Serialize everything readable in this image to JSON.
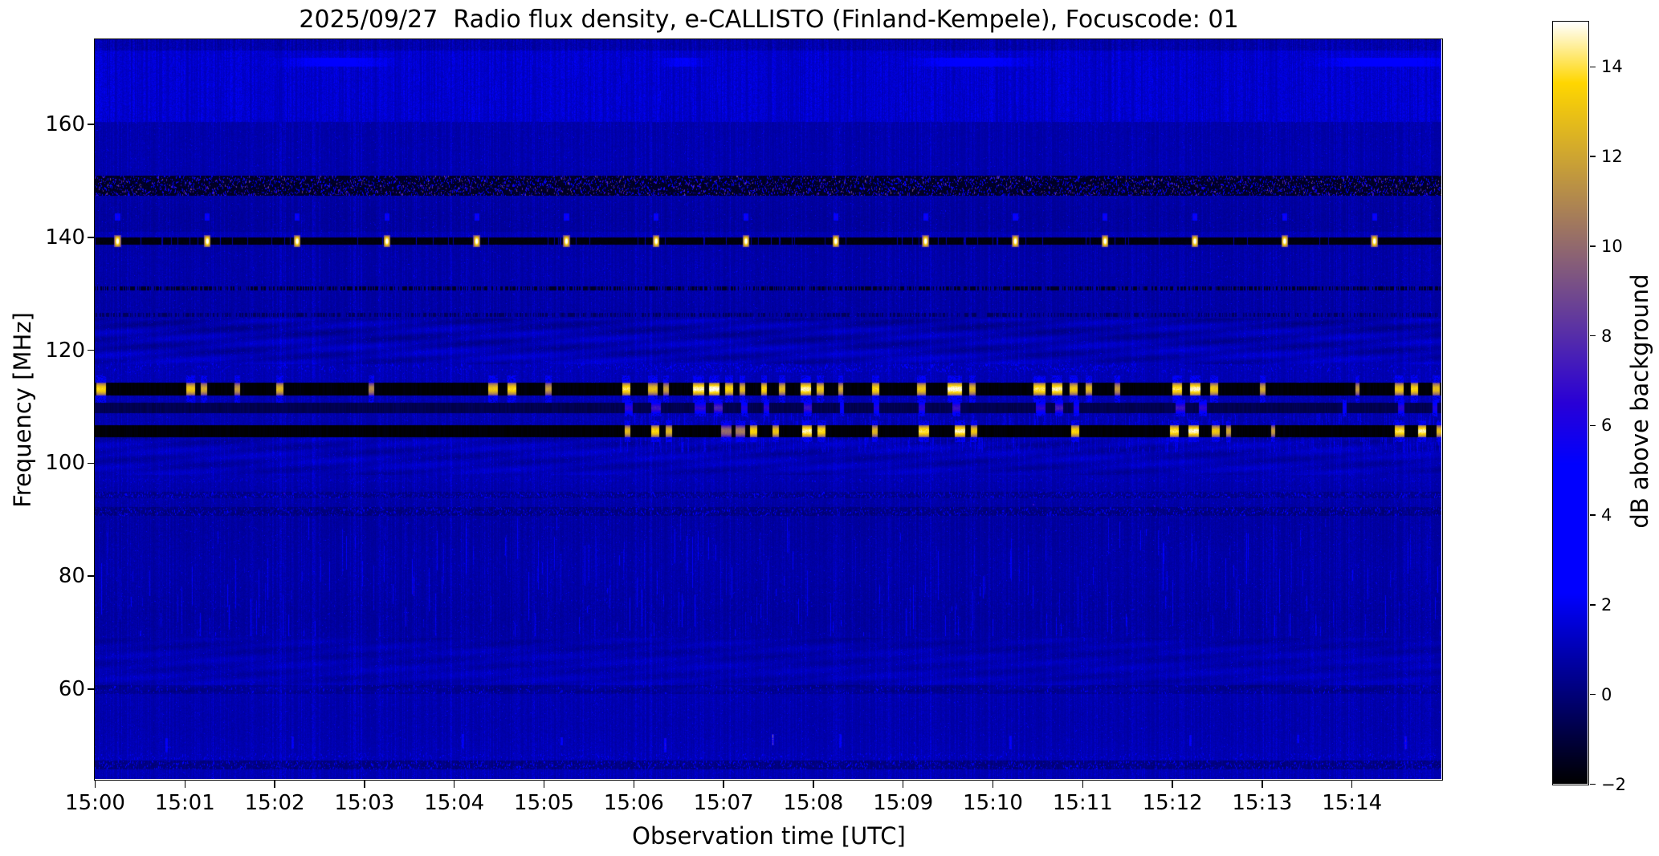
{
  "title": "2025/09/27  Radio flux density, e-CALLISTO (Finland-Kempele), Focuscode: 01",
  "xlabel": "Observation time [UTC]",
  "ylabel": "Frequency [MHz]",
  "colorbar": {
    "label": "dB above background",
    "min": -2,
    "max": 15,
    "tick_values": [
      14,
      12,
      10,
      8,
      6,
      4,
      2,
      0,
      -2
    ],
    "tick_labels": [
      "14",
      "12",
      "10",
      "8",
      "6",
      "4",
      "2",
      "0",
      "−2"
    ],
    "colormap": "gnuplot2"
  },
  "axes": {
    "x_tick_labels": [
      "15:00",
      "15:01",
      "15:02",
      "15:03",
      "15:04",
      "15:05",
      "15:06",
      "15:07",
      "15:08",
      "15:09",
      "15:10",
      "15:11",
      "15:12",
      "15:13",
      "15:14"
    ],
    "x_tick_minutes": [
      0,
      1,
      2,
      3,
      4,
      5,
      6,
      7,
      8,
      9,
      10,
      11,
      12,
      13,
      14
    ],
    "y_tick_values": [
      160,
      140,
      120,
      100,
      80,
      60
    ]
  },
  "colors": {
    "background": "#ffffff",
    "text": "#000000"
  },
  "chart_data": {
    "type": "heatmap",
    "title": "2025/09/27  Radio flux density, e-CALLISTO (Finland-Kempele), Focuscode: 01",
    "date": "2025/09/27",
    "station": "Finland-Kempele",
    "focuscode": "01",
    "xlabel": "Observation time [UTC]",
    "ylabel": "Frequency [MHz]",
    "x_range_time": [
      "15:00",
      "15:15"
    ],
    "x_range_minutes": [
      0,
      15
    ],
    "y_range_mhz": [
      44,
      175
    ],
    "value_scale": {
      "label": "dB above background",
      "min": -2,
      "max": 15,
      "colormap": "gnuplot2"
    },
    "background_db": 1.0,
    "features": [
      {
        "type": "stripes",
        "f": [
          160.5,
          175.0
        ],
        "base": 0.75,
        "amp": 1.05
      },
      {
        "type": "shade",
        "f": [
          173.2,
          175.0
        ],
        "add": -0.55
      },
      {
        "type": "streaks",
        "f": [
          160.5,
          173.0
        ],
        "density": 0.1,
        "v": [
          1.6,
          2.6
        ],
        "t": [
          0,
          15
        ],
        "len": [
          5,
          40
        ]
      },
      {
        "type": "smudge",
        "f": [
          170.3,
          171.8
        ],
        "events": [
          [
            2.15,
            1.1,
            1.8
          ],
          [
            6.3,
            0.5,
            1.2
          ],
          [
            9.2,
            1.15,
            2.0
          ],
          [
            13.75,
            1.3,
            2.2
          ]
        ]
      },
      {
        "type": "set",
        "f": [
          147.5,
          150.8
        ],
        "value": -1.6,
        "jitter": 0.5
      },
      {
        "type": "speckle",
        "f": [
          147.5,
          150.8
        ],
        "density": 0.95,
        "v": [
          1.2,
          9.0
        ],
        "dashes": 3
      },
      {
        "type": "line_dark",
        "f": [
          138.75,
          139.85
        ],
        "value": -1.9,
        "gap": 0.05
      },
      {
        "type": "shade",
        "f": [
          140.1,
          140.9
        ],
        "add": 0.3
      },
      {
        "type": "minute_blobs",
        "fc": 143.6,
        "fh": 0.7,
        "offset": 0.25,
        "width": 0.055,
        "v_core": 6.2,
        "v_edge": 2.5
      },
      {
        "type": "minute_blobs",
        "fc": 139.3,
        "fh": 1.05,
        "offset": 0.25,
        "width": 0.075,
        "v_core": 15.6,
        "v_edge": 8.5
      },
      {
        "type": "line_dark",
        "f": [
          130.6,
          131.25
        ],
        "value": -1.5,
        "gap": 0.45
      },
      {
        "type": "line_dark",
        "f": [
          125.95,
          126.5
        ],
        "value": -0.55,
        "gap": 0.55
      },
      {
        "type": "wavy",
        "f": [
          117.6,
          125.6
        ],
        "amp": 0.5
      },
      {
        "type": "wavy",
        "f": [
          98.0,
          104.6
        ],
        "amp": 0.4
      },
      {
        "type": "wavy",
        "f": [
          59.5,
          69.0
        ],
        "amp": 0.28
      },
      {
        "type": "speckle",
        "f": [
          116.2,
          117.6
        ],
        "density": 0.3,
        "v": [
          1.8,
          4.0
        ],
        "dashes": 1
      },
      {
        "type": "speckle",
        "f": [
          116.2,
          117.6
        ],
        "density": 0.55,
        "v": [
          2.2,
          5.0
        ],
        "dashes": 1,
        "t": [
          5.8,
          11.6
        ]
      },
      {
        "type": "streaks",
        "f": [
          102.0,
          110.8
        ],
        "density": 0.5,
        "v": [
          1.4,
          2.6
        ],
        "t": [
          5.85,
          15
        ],
        "len": [
          6,
          40
        ]
      },
      {
        "type": "bursts",
        "f": [
          112.0,
          114.2
        ],
        "base": -2,
        "bleed": 1.3,
        "events": [
          [
            0.02,
            0.1,
            14
          ],
          [
            1.02,
            0.09,
            13.5
          ],
          [
            1.18,
            0.06,
            12.5
          ],
          [
            1.56,
            0.05,
            12
          ],
          [
            2.02,
            0.07,
            13
          ],
          [
            3.05,
            0.05,
            11.5
          ],
          [
            4.38,
            0.1,
            13.5
          ],
          [
            4.6,
            0.09,
            14
          ],
          [
            5.02,
            0.06,
            12
          ],
          [
            5.88,
            0.08,
            14.5
          ],
          [
            6.16,
            0.1,
            13.2
          ],
          [
            6.33,
            0.06,
            12.2
          ],
          [
            6.66,
            0.12,
            15
          ],
          [
            6.84,
            0.11,
            15.4
          ],
          [
            7.02,
            0.08,
            14
          ],
          [
            7.18,
            0.06,
            13
          ],
          [
            7.42,
            0.06,
            14
          ],
          [
            7.62,
            0.06,
            13
          ],
          [
            7.86,
            0.11,
            15
          ],
          [
            8.04,
            0.07,
            13.5
          ],
          [
            8.28,
            0.05,
            12.5
          ],
          [
            8.66,
            0.07,
            14
          ],
          [
            9.16,
            0.09,
            13.5
          ],
          [
            9.5,
            0.15,
            15.3
          ],
          [
            9.74,
            0.06,
            13
          ],
          [
            10.46,
            0.12,
            14.5
          ],
          [
            10.66,
            0.11,
            15
          ],
          [
            10.86,
            0.08,
            13.5
          ],
          [
            11.04,
            0.06,
            13
          ],
          [
            11.36,
            0.05,
            12
          ],
          [
            12.0,
            0.1,
            14.5
          ],
          [
            12.2,
            0.11,
            15.2
          ],
          [
            12.42,
            0.08,
            13.5
          ],
          [
            12.98,
            0.05,
            12.5
          ],
          [
            14.04,
            0.04,
            12
          ],
          [
            14.48,
            0.09,
            13.5
          ],
          [
            14.66,
            0.07,
            14
          ],
          [
            14.9,
            0.07,
            13.2
          ]
        ]
      },
      {
        "type": "bursts",
        "f": [
          109.0,
          110.6
        ],
        "base": -0.85,
        "bleed": 0.5,
        "events": [
          [
            5.9,
            0.08,
            7
          ],
          [
            6.2,
            0.1,
            7.5
          ],
          [
            6.68,
            0.12,
            7
          ],
          [
            6.9,
            0.09,
            8
          ],
          [
            7.2,
            0.06,
            6.5
          ],
          [
            7.45,
            0.05,
            7
          ],
          [
            7.9,
            0.08,
            7.5
          ],
          [
            8.3,
            0.04,
            6
          ],
          [
            8.68,
            0.05,
            6.5
          ],
          [
            9.18,
            0.06,
            7
          ],
          [
            9.55,
            0.08,
            7.5
          ],
          [
            10.48,
            0.1,
            7
          ],
          [
            10.7,
            0.08,
            7.8
          ],
          [
            10.9,
            0.06,
            6.5
          ],
          [
            12.04,
            0.1,
            7.5
          ],
          [
            12.3,
            0.08,
            7
          ],
          [
            13.9,
            0.04,
            6
          ],
          [
            14.52,
            0.06,
            7
          ],
          [
            14.9,
            0.05,
            6.5
          ]
        ]
      },
      {
        "type": "bursts",
        "f": [
          104.6,
          106.6
        ],
        "base": -2,
        "bleed": 0.9,
        "events": [
          [
            5.9,
            0.06,
            13
          ],
          [
            6.2,
            0.08,
            14
          ],
          [
            6.36,
            0.06,
            13
          ],
          [
            6.98,
            0.1,
            10.5
          ],
          [
            7.14,
            0.1,
            11
          ],
          [
            7.3,
            0.07,
            14
          ],
          [
            7.55,
            0.06,
            13.5
          ],
          [
            7.88,
            0.1,
            15
          ],
          [
            8.05,
            0.08,
            14.2
          ],
          [
            8.66,
            0.05,
            13
          ],
          [
            9.18,
            0.1,
            14.5
          ],
          [
            9.58,
            0.11,
            15
          ],
          [
            9.76,
            0.06,
            13.5
          ],
          [
            10.88,
            0.08,
            14
          ],
          [
            11.98,
            0.09,
            14.5
          ],
          [
            12.18,
            0.11,
            15.2
          ],
          [
            12.44,
            0.08,
            13.5
          ],
          [
            12.6,
            0.05,
            12.5
          ],
          [
            13.1,
            0.04,
            12
          ],
          [
            14.48,
            0.1,
            14.5
          ],
          [
            14.74,
            0.08,
            15
          ],
          [
            14.95,
            0.05,
            13.2
          ]
        ]
      },
      {
        "type": "speckle",
        "f": [
          96.7,
          97.25
        ],
        "density": 0.5,
        "v": [
          0.8,
          2.0
        ],
        "dashes": 1
      },
      {
        "type": "shade",
        "f": [
          93.8,
          94.9
        ],
        "add": -0.55
      },
      {
        "type": "speckle",
        "f": [
          93.8,
          94.9
        ],
        "density": 0.6,
        "v": [
          0.7,
          2.8
        ],
        "dashes": 2
      },
      {
        "type": "shade",
        "f": [
          90.7,
          92.2
        ],
        "add": -0.6
      },
      {
        "type": "speckle",
        "f": [
          90.7,
          92.2
        ],
        "density": 0.6,
        "v": [
          0.7,
          3.0
        ],
        "dashes": 2
      },
      {
        "type": "sparse_dots",
        "f": [
          90.7,
          95.0
        ],
        "events": [
          [
            0.35,
            5.5
          ],
          [
            2.1,
            6.5
          ],
          [
            5.45,
            5.0
          ],
          [
            6.6,
            5.5
          ],
          [
            8.05,
            6.0
          ],
          [
            10.45,
            7.0
          ],
          [
            11.8,
            6.0
          ],
          [
            13.9,
            6.5
          ]
        ]
      },
      {
        "type": "streaks",
        "f": [
          69.5,
          90.5
        ],
        "density": 0.13,
        "v": [
          1.7,
          3.4
        ],
        "t": [
          0,
          15
        ],
        "len": [
          6,
          60
        ]
      },
      {
        "type": "streaks",
        "f": [
          69.5,
          90.5
        ],
        "density": 0.012,
        "v": [
          5.0,
          7.0
        ],
        "t": [
          0,
          15
        ],
        "len": [
          8,
          26
        ]
      },
      {
        "type": "speckle",
        "f": [
          74.6,
          75.8
        ],
        "density": 0.4,
        "v": [
          0.6,
          1.8
        ],
        "dashes": 1
      },
      {
        "type": "shade",
        "f": [
          59.2,
          60.6
        ],
        "add": -0.45
      },
      {
        "type": "speckle",
        "f": [
          59.2,
          60.6
        ],
        "density": 0.3,
        "v": [
          1.6,
          2.8
        ],
        "dashes": 1
      },
      {
        "type": "streaks_short",
        "f": [
          49.9,
          51.2
        ],
        "events": [
          [
            0.8,
            6.5
          ],
          [
            2.2,
            6.0
          ],
          [
            4.1,
            5.5
          ],
          [
            5.2,
            6.0
          ],
          [
            6.35,
            7.5
          ],
          [
            7.55,
            11.0
          ],
          [
            8.3,
            6.0
          ],
          [
            10.2,
            6.5
          ],
          [
            12.2,
            6.0
          ],
          [
            13.4,
            5.5
          ],
          [
            14.6,
            7.5
          ]
        ]
      },
      {
        "type": "speckle",
        "f": [
          47.6,
          48.6
        ],
        "density": 0.35,
        "v": [
          1.5,
          3.0
        ],
        "dashes": 1
      },
      {
        "type": "shade",
        "f": [
          45.8,
          47.2
        ],
        "add": -0.85
      },
      {
        "type": "speckle",
        "f": [
          45.8,
          47.2
        ],
        "density": 0.4,
        "v": [
          1.6,
          3.2
        ],
        "dashes": 2
      }
    ]
  }
}
